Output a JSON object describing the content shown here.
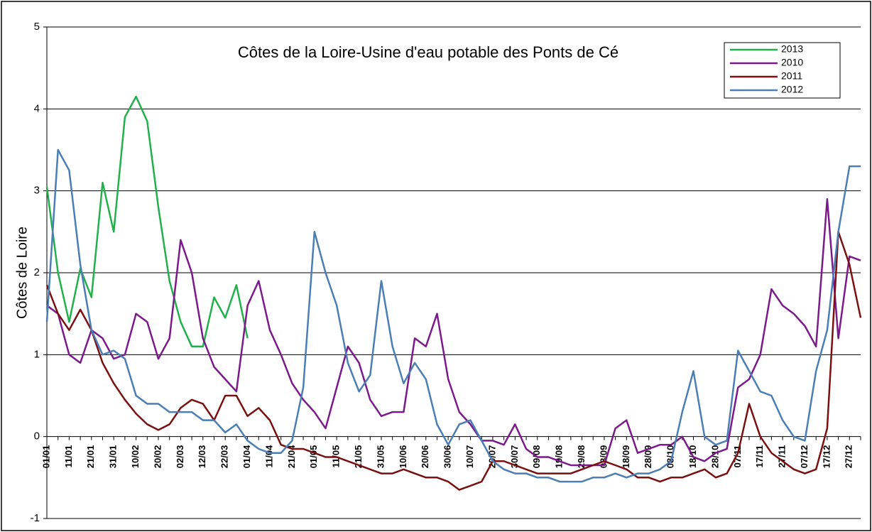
{
  "chart_data": {
    "type": "line",
    "title": "Côtes de la Loire-Usine d'eau potable des Ponts de Cé",
    "y_label": "Côtes de Loire",
    "categories": [
      "01/01",
      null,
      "11/01",
      null,
      "21/01",
      null,
      "31/01",
      null,
      "10/02",
      null,
      "20/02",
      null,
      "02/03",
      null,
      "12/03",
      null,
      "22/03",
      null,
      "01/04",
      null,
      "11/04",
      null,
      "21/04",
      null,
      "01/05",
      null,
      "11/05",
      null,
      "21/05",
      null,
      "31/05",
      null,
      "10/06",
      null,
      "20/06",
      null,
      "30/06",
      null,
      "10/07",
      null,
      "20/07",
      null,
      "30/07",
      null,
      "09/08",
      null,
      "19/08",
      null,
      "29/08",
      null,
      "08/09",
      null,
      "18/09",
      null,
      "28/09",
      null,
      "08/10",
      null,
      "18/10",
      null,
      "28/10",
      null,
      "07/11",
      null,
      "17/11",
      null,
      "27/11",
      null,
      "07/12",
      null,
      "17/12",
      null,
      "27/12",
      null
    ],
    "series": [
      {
        "name": "2013",
        "color": "#21b04b",
        "values": [
          3.05,
          2.0,
          1.4,
          2.05,
          1.7,
          3.1,
          2.5,
          3.9,
          4.15,
          3.85,
          2.8,
          1.9,
          1.4,
          1.1,
          1.1,
          1.7,
          1.45,
          1.85,
          1.2,
          null,
          null,
          null,
          null,
          null,
          null,
          null,
          null,
          null,
          null,
          null,
          null,
          null,
          null,
          null,
          null,
          null,
          null,
          null,
          null,
          null,
          null,
          null,
          null,
          null,
          null,
          null,
          null,
          null,
          null,
          null,
          null,
          null,
          null,
          null,
          null,
          null,
          null,
          null,
          null,
          null,
          null,
          null,
          null,
          null,
          null,
          null,
          null,
          null,
          null,
          null,
          null,
          null,
          null,
          null
        ]
      },
      {
        "name": "2010",
        "color": "#7b1a8a",
        "values": [
          1.6,
          1.5,
          1.0,
          0.9,
          1.3,
          1.2,
          0.95,
          1.0,
          1.5,
          1.4,
          0.95,
          1.2,
          2.4,
          2.0,
          1.2,
          0.85,
          0.7,
          0.55,
          1.6,
          1.9,
          1.3,
          1.0,
          0.65,
          0.45,
          0.3,
          0.1,
          0.6,
          1.1,
          0.9,
          0.45,
          0.25,
          0.3,
          0.3,
          1.2,
          1.1,
          1.5,
          0.7,
          0.3,
          0.15,
          -0.05,
          -0.05,
          -0.1,
          0.15,
          -0.15,
          -0.25,
          -0.25,
          -0.3,
          -0.35,
          -0.35,
          -0.35,
          -0.35,
          0.1,
          0.2,
          -0.2,
          -0.15,
          -0.1,
          -0.1,
          0.0,
          -0.25,
          -0.3,
          -0.2,
          -0.15,
          0.6,
          0.7,
          1.0,
          1.8,
          1.6,
          1.5,
          1.35,
          1.1,
          2.9,
          1.2,
          2.2,
          2.15
        ]
      },
      {
        "name": "2011",
        "color": "#7a1010",
        "values": [
          1.85,
          1.5,
          1.3,
          1.55,
          1.3,
          0.9,
          0.65,
          0.45,
          0.28,
          0.15,
          0.08,
          0.15,
          0.35,
          0.45,
          0.4,
          0.2,
          0.5,
          0.5,
          0.25,
          0.35,
          0.2,
          -0.1,
          -0.15,
          -0.15,
          -0.2,
          -0.25,
          -0.25,
          -0.3,
          -0.35,
          -0.4,
          -0.45,
          -0.45,
          -0.4,
          -0.45,
          -0.5,
          -0.5,
          -0.55,
          -0.65,
          -0.6,
          -0.55,
          -0.3,
          -0.3,
          -0.35,
          -0.4,
          -0.45,
          -0.45,
          -0.45,
          -0.45,
          -0.4,
          -0.35,
          -0.3,
          -0.35,
          -0.4,
          -0.5,
          -0.5,
          -0.55,
          -0.5,
          -0.5,
          -0.45,
          -0.4,
          -0.5,
          -0.45,
          -0.2,
          0.4,
          0.0,
          -0.2,
          -0.3,
          -0.4,
          -0.45,
          -0.4,
          0.1,
          2.5,
          2.1,
          1.45
        ]
      },
      {
        "name": "2012",
        "color": "#4a7eb5",
        "values": [
          1.4,
          3.5,
          3.25,
          2.1,
          1.3,
          1.0,
          1.05,
          0.95,
          0.5,
          0.4,
          0.4,
          0.3,
          0.3,
          0.3,
          0.2,
          0.2,
          0.05,
          0.15,
          -0.05,
          -0.15,
          -0.2,
          -0.2,
          -0.05,
          0.6,
          2.5,
          2.0,
          1.6,
          0.9,
          0.55,
          0.75,
          1.9,
          1.1,
          0.65,
          0.9,
          0.7,
          0.15,
          -0.1,
          0.15,
          0.2,
          -0.05,
          -0.3,
          -0.4,
          -0.45,
          -0.45,
          -0.5,
          -0.5,
          -0.55,
          -0.55,
          -0.55,
          -0.5,
          -0.5,
          -0.45,
          -0.5,
          -0.45,
          -0.45,
          -0.4,
          -0.3,
          0.3,
          0.8,
          0.0,
          -0.1,
          -0.05,
          1.05,
          0.8,
          0.55,
          0.5,
          0.2,
          0.0,
          -0.05,
          0.8,
          1.3,
          2.5,
          3.3,
          3.3
        ]
      }
    ],
    "ylim": [
      -1,
      5
    ],
    "yticks": [
      -1,
      0,
      1,
      2,
      3,
      4,
      5
    ],
    "grid": true,
    "legend": "top-right"
  }
}
